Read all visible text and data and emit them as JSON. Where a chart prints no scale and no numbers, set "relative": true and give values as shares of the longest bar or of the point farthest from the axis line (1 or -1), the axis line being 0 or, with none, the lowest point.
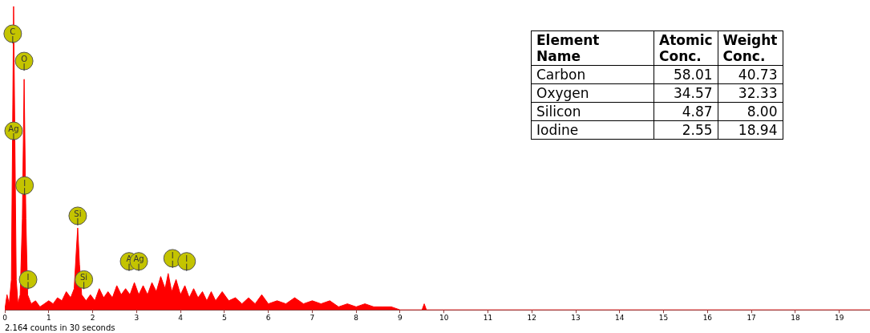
{
  "chart_data": [
    {
      "type": "area",
      "relative": true,
      "grid": false,
      "legend": false,
      "marker": "none",
      "xlim": [
        0,
        19.7
      ],
      "xticks": [
        0,
        1,
        2,
        3,
        4,
        5,
        6,
        7,
        8,
        9,
        10,
        11,
        12,
        13,
        14,
        15,
        16,
        17,
        18,
        19
      ],
      "x": [
        0,
        0.05,
        0.1,
        0.15,
        0.2,
        0.26,
        0.3,
        0.35,
        0.4,
        0.44,
        0.48,
        0.52,
        0.6,
        0.7,
        0.8,
        0.9,
        1.0,
        1.1,
        1.2,
        1.3,
        1.4,
        1.5,
        1.58,
        1.63,
        1.66,
        1.7,
        1.75,
        1.85,
        1.95,
        2.05,
        2.15,
        2.25,
        2.35,
        2.45,
        2.55,
        2.65,
        2.75,
        2.85,
        2.95,
        3.05,
        3.15,
        3.25,
        3.35,
        3.45,
        3.55,
        3.65,
        3.72,
        3.8,
        3.9,
        4.0,
        4.1,
        4.2,
        4.3,
        4.4,
        4.5,
        4.6,
        4.7,
        4.8,
        4.95,
        5.1,
        5.25,
        5.4,
        5.55,
        5.7,
        5.85,
        6.0,
        6.2,
        6.4,
        6.6,
        6.8,
        7.0,
        7.2,
        7.4,
        7.6,
        7.8,
        8.0,
        8.2,
        8.4,
        8.6,
        8.8,
        9.0,
        9.5,
        9.55,
        9.6,
        19.7
      ],
      "series": [
        {
          "color": "#ff0000",
          "values": [
            0,
            0.05,
            0.02,
            0.1,
            1.0,
            0.1,
            0.02,
            0.05,
            0.3,
            0.76,
            0.3,
            0.05,
            0.02,
            0.03,
            0.01,
            0.02,
            0.03,
            0.02,
            0.04,
            0.03,
            0.06,
            0.04,
            0.07,
            0.2,
            0.27,
            0.15,
            0.05,
            0.03,
            0.05,
            0.03,
            0.07,
            0.04,
            0.06,
            0.04,
            0.08,
            0.05,
            0.07,
            0.05,
            0.09,
            0.05,
            0.08,
            0.05,
            0.09,
            0.06,
            0.11,
            0.07,
            0.12,
            0.06,
            0.1,
            0.05,
            0.08,
            0.04,
            0.07,
            0.04,
            0.06,
            0.03,
            0.06,
            0.03,
            0.06,
            0.03,
            0.04,
            0.02,
            0.04,
            0.02,
            0.05,
            0.02,
            0.03,
            0.02,
            0.04,
            0.02,
            0.03,
            0.02,
            0.03,
            0.01,
            0.02,
            0.01,
            0.02,
            0.01,
            0.01,
            0.01,
            0,
            0,
            0.02,
            0,
            0
          ]
        }
      ],
      "annotations": [
        {
          "text": "C",
          "x": 0.18,
          "y": 0.91
        },
        {
          "text": "O",
          "x": 0.44,
          "y": 0.82
        },
        {
          "text": "Ag",
          "x": 0.2,
          "y": 0.59
        },
        {
          "text": "I",
          "x": 0.45,
          "y": 0.41
        },
        {
          "text": "Si",
          "x": 1.66,
          "y": 0.31
        },
        {
          "text": "I",
          "x": 0.53,
          "y": 0.1
        },
        {
          "text": "Si",
          "x": 1.8,
          "y": 0.1
        },
        {
          "text": "A",
          "x": 2.83,
          "y": 0.16
        },
        {
          "text": "Ag",
          "x": 3.05,
          "y": 0.16
        },
        {
          "text": "I",
          "x": 3.82,
          "y": 0.17
        },
        {
          "text": "I",
          "x": 4.14,
          "y": 0.16
        },
        "2.164 counts in 30 seconds"
      ]
    },
    {
      "type": "heatmap",
      "ylabel": "Element Name",
      "categories": [
        "Atomic Conc.",
        "Weight Conc."
      ],
      "y_categories": [
        "Carbon",
        "Oxygen",
        "Silicon",
        "Iodine"
      ],
      "cells": [
        [
          58.01,
          40.73
        ],
        [
          34.57,
          32.33
        ],
        [
          4.87,
          8.0
        ],
        [
          2.55,
          18.94
        ]
      ],
      "cell_labels": [
        [
          "58.01",
          "40.73"
        ],
        [
          "34.57",
          "32.33"
        ],
        [
          "4.87",
          "8.00"
        ],
        [
          "2.55",
          "18.94"
        ]
      ]
    }
  ]
}
